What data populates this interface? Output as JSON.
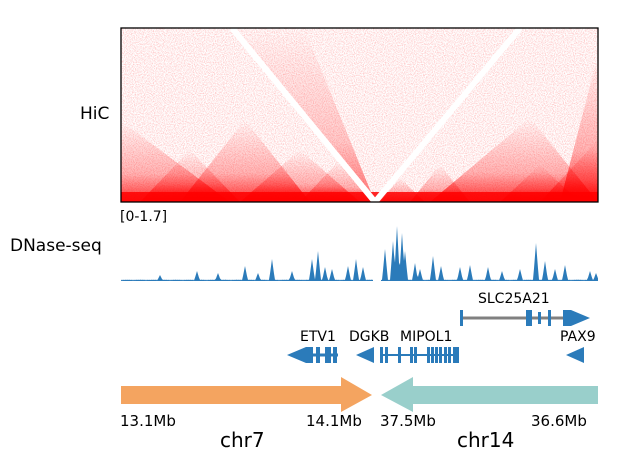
{
  "tracks": {
    "hic_label": "HiC",
    "dnase_label": "DNase-seq",
    "dnase_range": "[0-1.7]"
  },
  "genes": [
    {
      "name": "SLC25A21"
    },
    {
      "name": "ETV1"
    },
    {
      "name": "DGKB"
    },
    {
      "name": "MIPOL1"
    },
    {
      "name": "PAX9"
    }
  ],
  "chromosomes": [
    {
      "name": "chr7",
      "start": "13.1Mb",
      "end": "14.1Mb",
      "color": "#f4a460"
    },
    {
      "name": "chr14",
      "start": "37.5Mb",
      "end": "36.6Mb",
      "color": "#99cfcb"
    }
  ],
  "colors": {
    "hic": "#ff0000",
    "track": "#2b7bba",
    "gene": "#2b7bba",
    "gene_line": "#808080"
  }
}
